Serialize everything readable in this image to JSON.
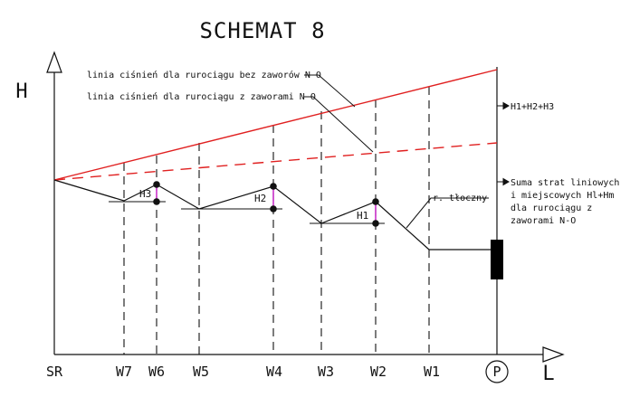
{
  "title": "SCHEMAT 8",
  "axis": {
    "y_label": "H",
    "x_label": "L"
  },
  "stations": {
    "sr": "SR",
    "w7": "W7",
    "w6": "W6",
    "w5": "W5",
    "w4": "W4",
    "w3": "W3",
    "w2": "W2",
    "w1": "W1",
    "pump": "P"
  },
  "annotations": {
    "line_without_valves": "linia ciśnień dla rurociągu bez zaworów N-O",
    "line_with_valves": "linia ciśnień dla rurociągu z zaworami N-O",
    "total_head": "H1+H2+H3",
    "losses_l1": "Suma strat liniowych",
    "losses_l2": "i miejscowych Hl+Hm",
    "losses_l3": "dla rurociągu z",
    "losses_l4": "zaworami N-O",
    "pressure_pipe": "r. tłoczny"
  },
  "heights": {
    "h1": "H1",
    "h2": "H2",
    "h3": "H3"
  },
  "colors": {
    "pressure_line": "#e02020",
    "height_marker": "#cc33cc",
    "ink": "#111111",
    "pump_block": "#000000"
  }
}
